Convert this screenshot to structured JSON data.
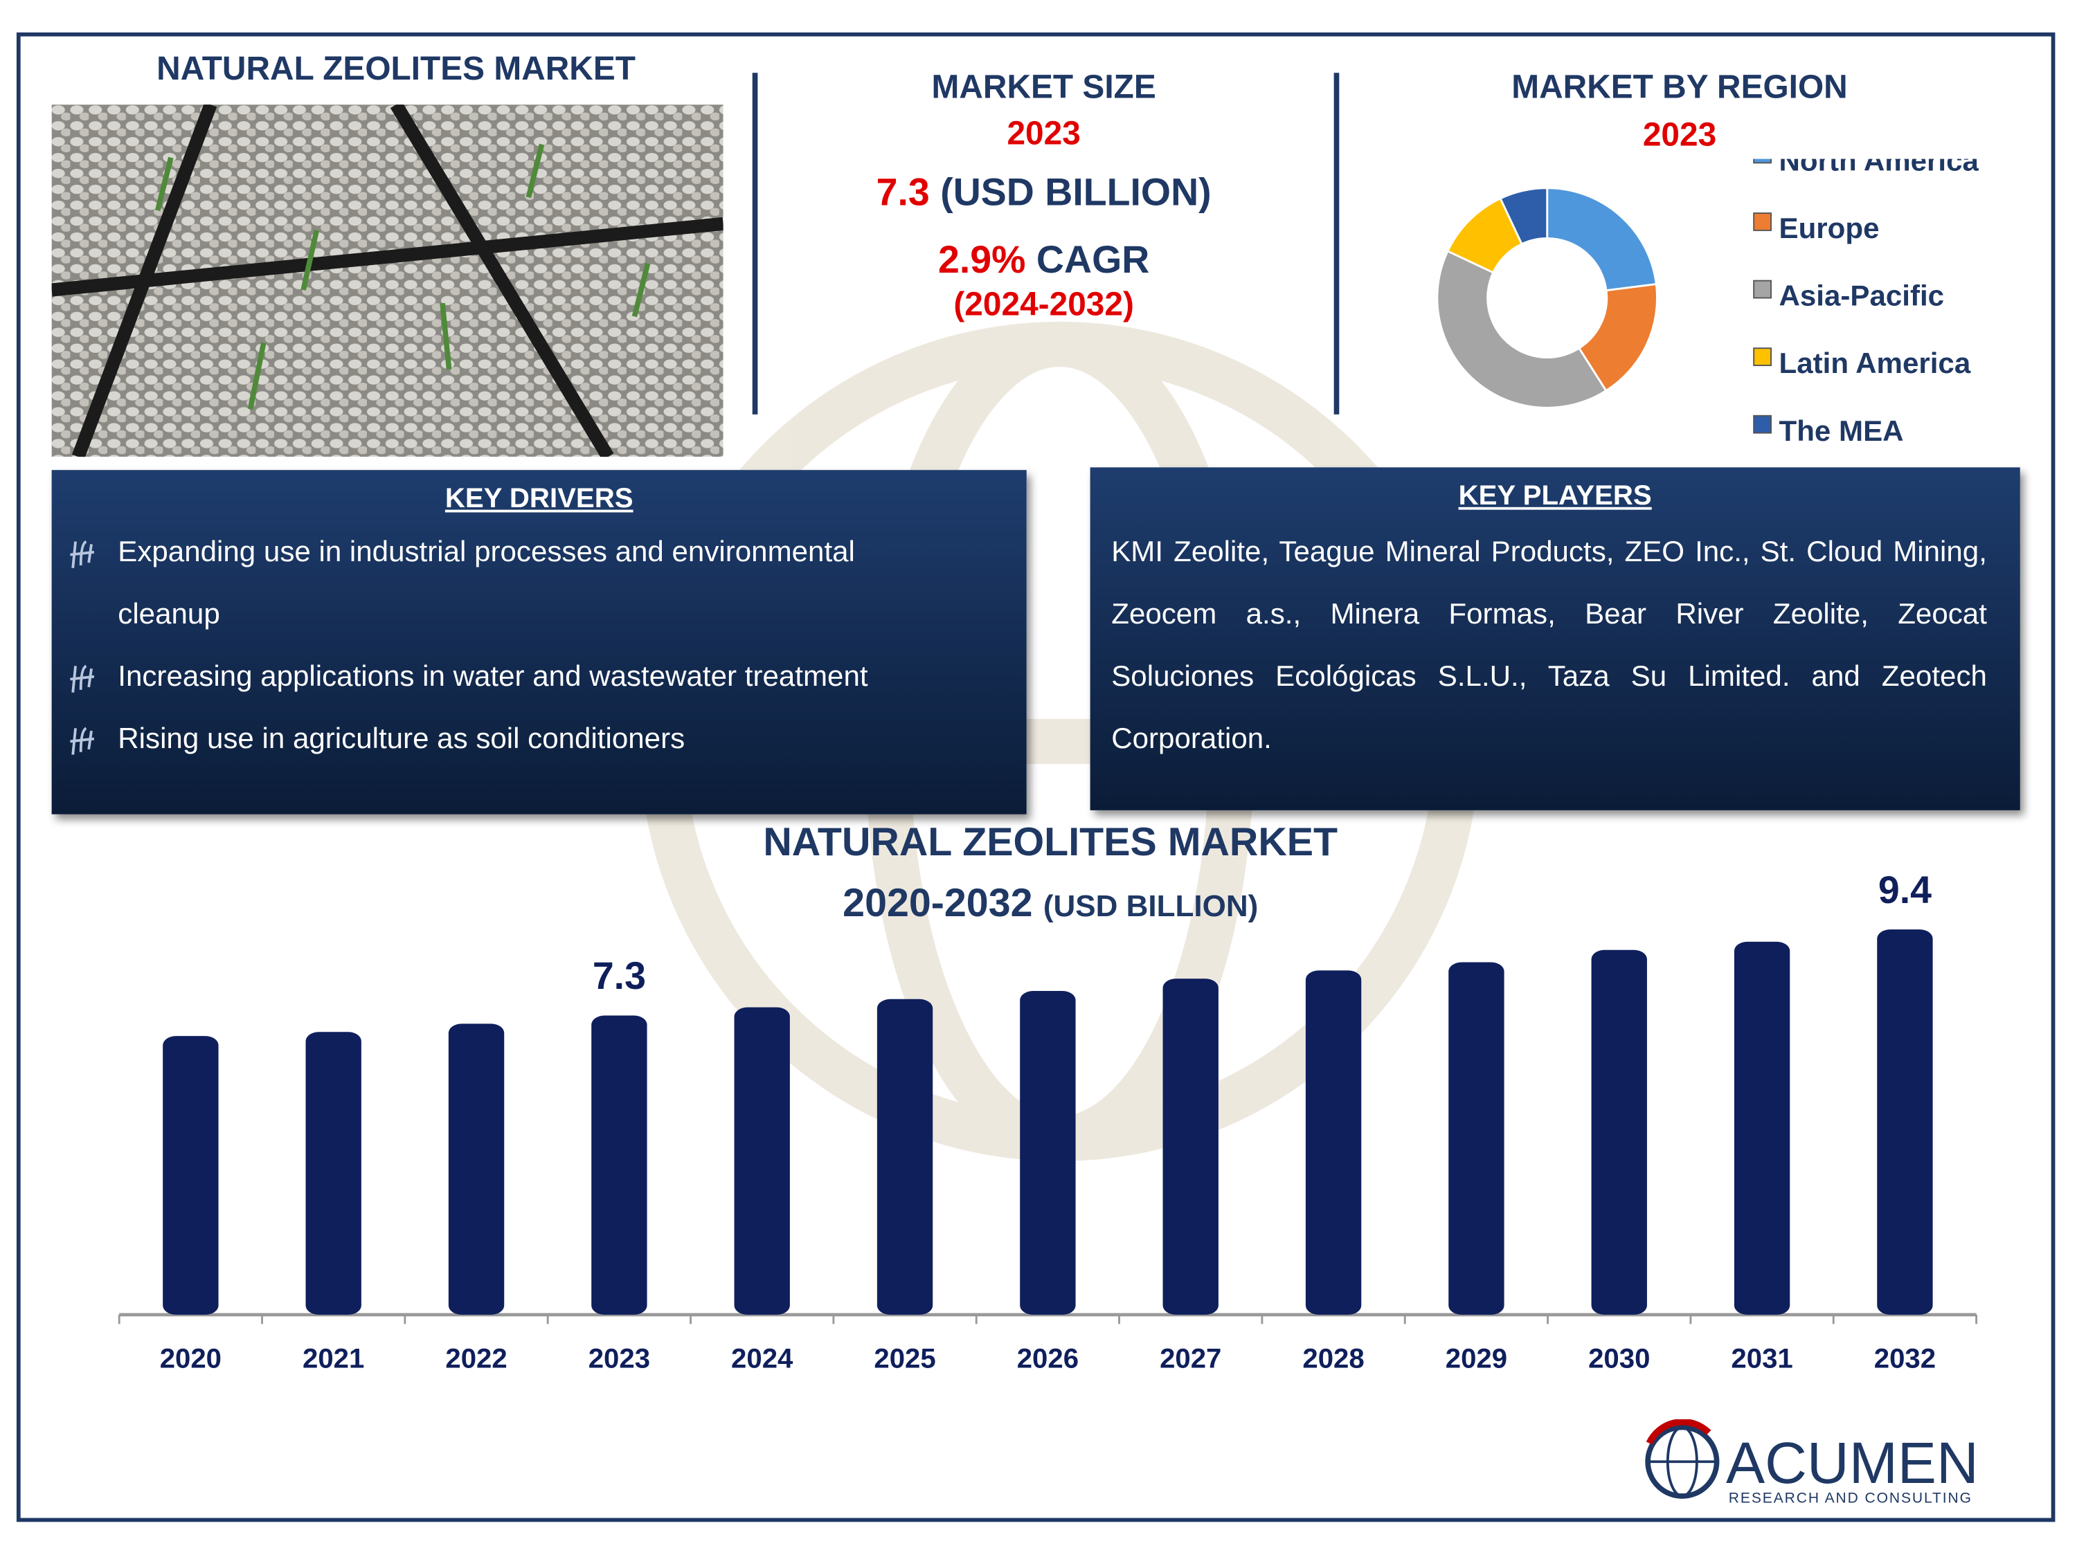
{
  "header": {
    "title": "NATURAL ZEOLITES MARKET"
  },
  "market_size": {
    "title": "MARKET SIZE",
    "year": "2023",
    "value": "7.3",
    "unit": "(USD BILLION)",
    "cagr_value": "2.9%",
    "cagr_label": "CAGR",
    "cagr_period": "(2024-2032)"
  },
  "key_drivers": {
    "title": "KEY DRIVERS",
    "items": [
      "Expanding use in industrial processes and environmental cleanup",
      "Increasing applications in water and wastewater treatment",
      "Rising use in agriculture as soil conditioners"
    ]
  },
  "key_players": {
    "title": "KEY PLAYERS",
    "text": "KMI Zeolite, Teague Mineral Products, ZEO Inc., St. Cloud Mining, Zeocem a.s., Minera Formas, Bear River Zeolite, Zeocat Soluciones Ecológicas S.L.U., Taza Su Limited. and Zeotech Corporation."
  },
  "logo": {
    "name": "ACUMEN",
    "tagline": "RESEARCH AND CONSULTING"
  },
  "chart_data": [
    {
      "type": "donut",
      "title": "MARKET BY REGION",
      "subtitle": "2023",
      "categories": [
        "North America",
        "Europe",
        "Asia-Pacific",
        "Latin America",
        "The MEA"
      ],
      "values": [
        23,
        18,
        41,
        11,
        7
      ],
      "colors": [
        "#4f97dc",
        "#ed7d31",
        "#a5a5a5",
        "#ffc000",
        "#2e5eaa"
      ]
    },
    {
      "type": "bar",
      "title": "NATURAL ZEOLITES MARKET",
      "subtitle": "2020-2032",
      "unit": "(USD BILLION)",
      "categories": [
        "2020",
        "2021",
        "2022",
        "2023",
        "2024",
        "2025",
        "2026",
        "2027",
        "2028",
        "2029",
        "2030",
        "2031",
        "2032"
      ],
      "values": [
        6.8,
        6.9,
        7.1,
        7.3,
        7.5,
        7.7,
        7.9,
        8.2,
        8.4,
        8.6,
        8.9,
        9.1,
        9.4
      ],
      "value_labels": [
        null,
        null,
        null,
        "7.3",
        null,
        null,
        null,
        null,
        null,
        null,
        null,
        null,
        "9.4"
      ],
      "color": "#0f1f5c"
    }
  ]
}
